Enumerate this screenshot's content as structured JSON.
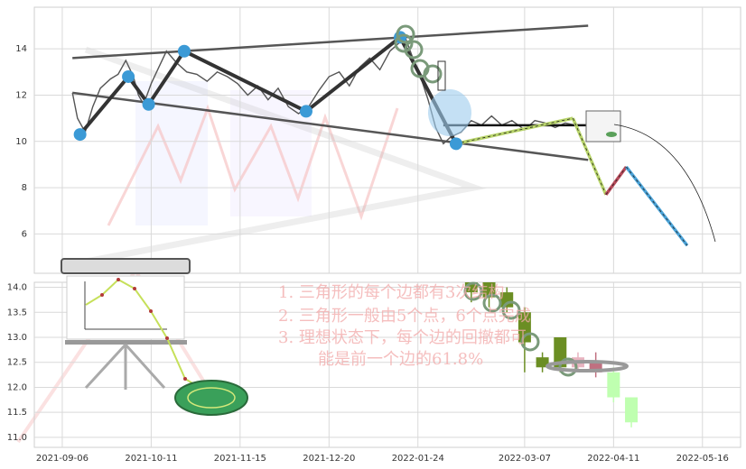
{
  "chart_data": [
    {
      "type": "line",
      "panel": "upper",
      "ylim": [
        4.3,
        15.8
      ],
      "y_ticks": [
        "14",
        "12",
        "10",
        "8",
        "6"
      ],
      "y_tick_values": [
        14,
        12,
        10,
        8,
        6
      ],
      "grid": true,
      "price_series": {
        "x": [
          "2021-09-10",
          "2021-09-12",
          "2021-09-15",
          "2021-09-18",
          "2021-09-21",
          "2021-09-25",
          "2021-09-28",
          "2021-10-01",
          "2021-10-04",
          "2021-10-06",
          "2021-10-08",
          "2021-10-11",
          "2021-10-14",
          "2021-10-17",
          "2021-10-21",
          "2021-10-25",
          "2021-10-29",
          "2021-11-02",
          "2021-11-06",
          "2021-11-10",
          "2021-11-14",
          "2021-11-18",
          "2021-11-22",
          "2021-11-26",
          "2021-11-30",
          "2021-12-04",
          "2021-12-08",
          "2021-12-12",
          "2021-12-16",
          "2021-12-20",
          "2021-12-24",
          "2021-12-28",
          "2022-01-01",
          "2022-01-05",
          "2022-01-09",
          "2022-01-13",
          "2022-01-16",
          "2022-01-19",
          "2022-01-22",
          "2022-01-25",
          "2022-01-28",
          "2022-01-31",
          "2022-02-03",
          "2022-02-06",
          "2022-02-10",
          "2022-02-14",
          "2022-02-18",
          "2022-02-22",
          "2022-02-26",
          "2022-03-02",
          "2022-03-07",
          "2022-03-11",
          "2022-03-15",
          "2022-03-19",
          "2022-03-23",
          "2022-03-27"
        ],
        "y": [
          12.1,
          11.0,
          10.4,
          11.5,
          12.3,
          12.7,
          12.9,
          13.5,
          12.8,
          12.0,
          11.6,
          12.5,
          13.2,
          13.9,
          13.4,
          13.0,
          12.9,
          12.6,
          13.0,
          12.8,
          12.5,
          12.0,
          12.4,
          11.8,
          12.3,
          11.5,
          11.2,
          11.5,
          12.2,
          12.8,
          13.0,
          12.4,
          13.2,
          13.6,
          13.1,
          13.9,
          14.2,
          14.5,
          13.6,
          12.8,
          11.8,
          10.6,
          9.9,
          10.2,
          10.4,
          10.9,
          10.7,
          11.1,
          10.7,
          10.9,
          10.5,
          10.9,
          10.8,
          10.6,
          10.8,
          10.7
        ]
      },
      "pivot_points": {
        "x": [
          "2021-09-13",
          "2021-10-02",
          "2021-10-10",
          "2021-10-24",
          "2021-12-11",
          "2022-01-17",
          "2022-02-08"
        ],
        "y": [
          10.3,
          12.8,
          11.6,
          13.9,
          11.3,
          14.5,
          9.9
        ]
      },
      "upper_trendline": {
        "x": [
          "2021-09-10",
          "2022-04-01"
        ],
        "y": [
          13.6,
          15.0
        ]
      },
      "lower_trendline": {
        "x": [
          "2021-09-10",
          "2022-04-01"
        ],
        "y": [
          12.1,
          9.2
        ]
      },
      "projection": {
        "x": [
          "2022-02-08",
          "2022-03-26",
          "2022-04-08",
          "2022-04-16",
          "2022-05-10"
        ],
        "y": [
          9.9,
          11.0,
          7.7,
          8.9,
          5.5
        ]
      },
      "flat_level": {
        "x": [
          "2022-02-03",
          "2022-04-05"
        ],
        "y": [
          10.7,
          10.7
        ]
      }
    },
    {
      "type": "candlestick",
      "panel": "lower",
      "ylim": [
        10.8,
        14.1
      ],
      "y_ticks": [
        "14.0",
        "13.5",
        "13.0",
        "12.5",
        "12.0",
        "11.5",
        "11.0"
      ],
      "y_tick_values": [
        14.0,
        13.5,
        13.0,
        12.5,
        12.0,
        11.5,
        11.0
      ],
      "x_ticks": [
        "2021-09-06",
        "2021-10-11",
        "2021-11-15",
        "2021-12-20",
        "2022-01-24",
        "2022-03-07",
        "2022-04-11",
        "2022-05-16"
      ],
      "x_tick_dates": [
        "2021-09-06",
        "2021-10-11",
        "2021-11-15",
        "2021-12-20",
        "2022-01-24",
        "2022-03-07",
        "2022-04-11",
        "2022-05-16"
      ],
      "x_range": [
        "2021-08-26",
        "2022-05-31"
      ],
      "grid": true,
      "candles": [
        {
          "date": "2022-02-14",
          "open": 14.1,
          "close": 13.9,
          "high": 14.1,
          "low": 13.7
        },
        {
          "date": "2022-02-21",
          "open": 14.1,
          "close": 13.8,
          "high": 14.1,
          "low": 13.6
        },
        {
          "date": "2022-02-28",
          "open": 13.9,
          "close": 13.6,
          "high": 14.0,
          "low": 13.5
        },
        {
          "date": "2022-03-07",
          "open": 13.5,
          "close": 12.9,
          "high": 13.6,
          "low": 12.3
        },
        {
          "date": "2022-03-14",
          "open": 12.6,
          "close": 12.4,
          "high": 12.7,
          "low": 12.3
        },
        {
          "date": "2022-03-21",
          "open": 13.0,
          "close": 12.4,
          "high": 13.0,
          "low": 12.3
        },
        {
          "date": "2022-03-28",
          "open": 12.4,
          "close": 12.6,
          "high": 12.7,
          "low": 12.3
        },
        {
          "date": "2022-04-04",
          "open": 12.5,
          "close": 12.3,
          "high": 12.7,
          "low": 12.2
        },
        {
          "date": "2022-04-11",
          "open": 12.3,
          "close": 11.8,
          "high": 12.4,
          "low": 11.7
        },
        {
          "date": "2022-04-18",
          "open": 11.8,
          "close": 11.3,
          "high": 11.8,
          "low": 11.2
        }
      ]
    }
  ],
  "watermark_notes": [
    "1.  三角形的每个边都有3次结构",
    "2.  三角形一般由5个点，6个点完成",
    "3.  理想状态下，每个边的回撤都可",
    "能是前一个边的61.8%"
  ],
  "colors": {
    "price_line": "#555555",
    "trendline": "#444444",
    "zigzag": "#333333",
    "pivot_dot": "#3b9ad6",
    "projection_down": "#4aa3d8",
    "projection_up": "#b8d46a",
    "projection_mid": "#b84a5a",
    "bull_candle": "#6b8e23",
    "bear_candle": "#c07080",
    "light_bull": "#bfffb0",
    "note_red": "#f2a9a9"
  }
}
